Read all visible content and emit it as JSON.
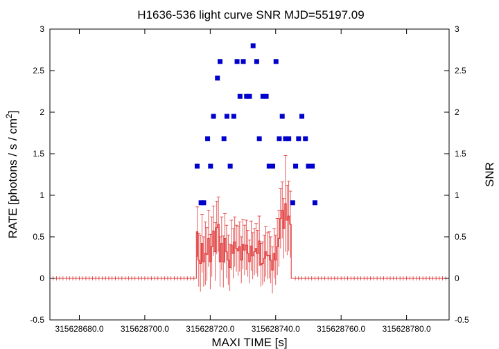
{
  "chart_data": {
    "type": "scatter",
    "title": "H1636-536 light curve  SNR MJD=55197.09",
    "xlabel": "MAXI TIME [s]",
    "ylabel": "RATE [photons / s / cm",
    "ylabel_sup": "2",
    "ylabel_end": "]",
    "y2label": "SNR",
    "xlim": [
      315628671.0,
      315628793.0
    ],
    "ylim": [
      -0.5,
      3
    ],
    "y2lim": [
      -0.5,
      3
    ],
    "grid": false,
    "x_ticks": [
      315628680,
      315628700,
      315628720,
      315628740,
      315628760,
      315628780
    ],
    "x_tick_labels": [
      "315628680.0",
      "315628700.0",
      "315628720.0",
      "315628740.0",
      "315628760.0",
      "315628780.0"
    ],
    "y_ticks": [
      -0.5,
      0,
      0.5,
      1,
      1.5,
      2,
      2.5,
      3
    ],
    "y_tick_labels": [
      "-0.5",
      "0",
      "0.5",
      "1",
      "1.5",
      "2",
      "2.5",
      "3"
    ],
    "y2_ticks": [
      -0.5,
      0,
      0.5,
      1,
      1.5,
      2,
      2.5,
      3
    ],
    "y2_tick_labels": [
      "-0.5",
      "0",
      "0.5",
      "1",
      "1.5",
      "2",
      "2.5",
      "3"
    ],
    "series": [
      {
        "color": "#e03030",
        "x_start": 315628716.0,
        "x_step": 0.5,
        "values": [
          0.56,
          0.22,
          0.18,
          0.42,
          0.2,
          0.3,
          0.29,
          0.48,
          0.2,
          0.38,
          0.57,
          0.32,
          0.61,
          0.65,
          0.2,
          0.42,
          0.2,
          0.48,
          0.32,
          0.22,
          0.13,
          0.4,
          0.3,
          0.44,
          0.36,
          0.33,
          0.38,
          0.22,
          0.41,
          0.34,
          0.4,
          0.3,
          0.2,
          0.39,
          0.27,
          0.32,
          0.36,
          0.3,
          0.45,
          0.16,
          0.18,
          0.24,
          0.32,
          0.27,
          0.28,
          0.22,
          0.1,
          0.3,
          0.22,
          0.38,
          0.48,
          0.72,
          0.82,
          0.6,
          0.9,
          0.7,
          0.75,
          0.65
        ],
        "errors": [
          0.3,
          0.32,
          0.34,
          0.35,
          0.3,
          0.38,
          0.32,
          0.34,
          0.33,
          0.36,
          0.3,
          0.35,
          0.32,
          0.33,
          0.3,
          0.32,
          0.31,
          0.3,
          0.32,
          0.3,
          0.28,
          0.3,
          0.3,
          0.3,
          0.28,
          0.3,
          0.3,
          0.28,
          0.3,
          0.3,
          0.3,
          0.28,
          0.26,
          0.3,
          0.28,
          0.28,
          0.3,
          0.28,
          0.3,
          0.26,
          0.26,
          0.28,
          0.3,
          0.28,
          0.28,
          0.28,
          0.28,
          0.3,
          0.3,
          0.34,
          0.34,
          0.36,
          0.34,
          0.36,
          0.58,
          0.42,
          0.42,
          0.4
        ]
      },
      {
        "color": "#0000cc",
        "x": [
          315628716.0,
          315628717.2,
          315628718.0,
          315628719.2,
          315628720.1,
          315628721.0,
          315628722.2,
          315628723.0,
          315628724.2,
          315628725.1,
          315628726.1,
          315628727.2,
          315628728.2,
          315628729.1,
          315628730.1,
          315628731.1,
          315628732.0,
          315628733.1,
          315628734.2,
          315628735.0,
          315628736.1,
          315628737.1,
          315628738.0,
          315628739.1,
          315628740.1,
          315628741.1,
          315628742.0,
          315628743.0,
          315628744.0,
          315628745.2,
          315628746.1,
          315628747.0,
          315628748.0,
          315628749.1,
          315628750.0,
          315628751.2,
          315628752.0
        ],
        "values": [
          1.35,
          0.91,
          0.91,
          1.68,
          1.35,
          1.95,
          2.41,
          2.61,
          1.68,
          1.95,
          1.35,
          1.95,
          2.61,
          2.19,
          2.61,
          2.19,
          2.19,
          2.8,
          2.61,
          1.68,
          2.19,
          2.19,
          1.35,
          1.35,
          2.61,
          1.68,
          1.95,
          1.68,
          1.68,
          0.91,
          1.35,
          1.68,
          1.95,
          1.68,
          1.35,
          1.35,
          0.91
        ]
      }
    ]
  }
}
